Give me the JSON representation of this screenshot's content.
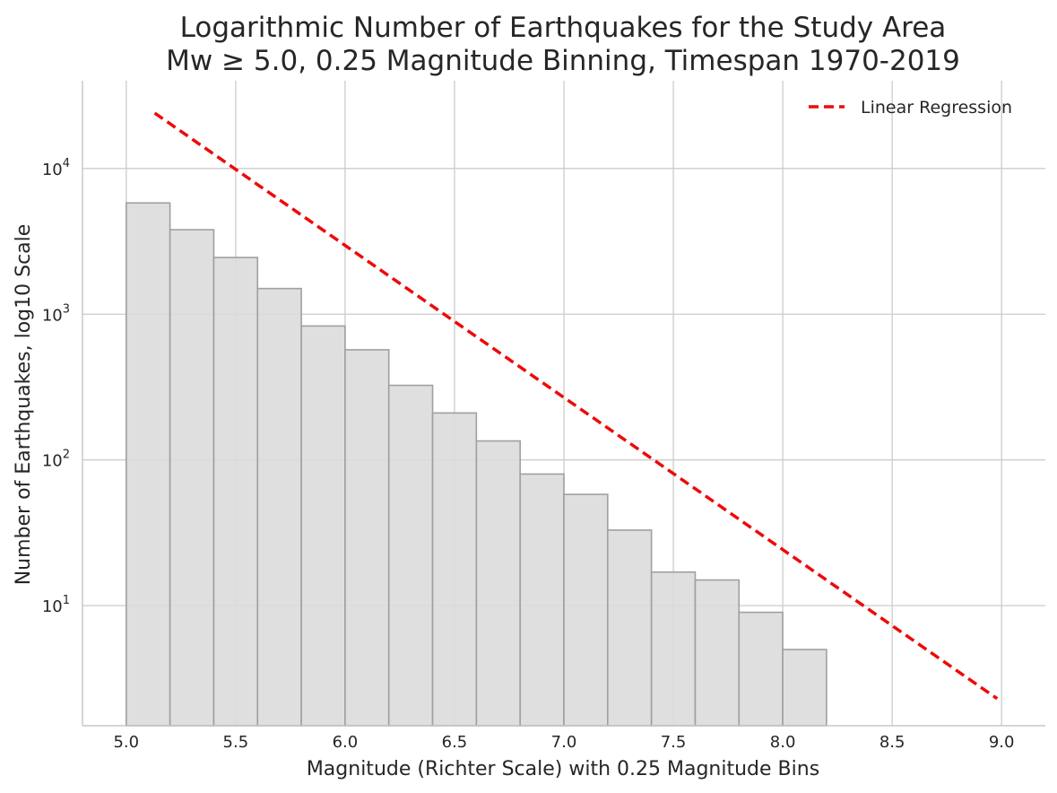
{
  "chart_data": {
    "type": "bar",
    "title_line1": "Logarithmic Number of Earthquakes for the Study Area",
    "title_line2": "Mw ≥ 5.0, 0.25 Magnitude Binning, Timespan 1970-2019",
    "xlabel": "Magnitude (Richter Scale) with 0.25 Magnitude Bins",
    "ylabel": "Number of Earthquakes, log10 Scale",
    "y_scale": "log10",
    "xlim": [
      4.8,
      9.2
    ],
    "ylim": [
      1.5,
      40000
    ],
    "grid": true,
    "legend_position": "top-right",
    "x_ticks": [
      {
        "value": 5.0,
        "label": "5.0"
      },
      {
        "value": 5.5,
        "label": "5.5"
      },
      {
        "value": 6.0,
        "label": "6.0"
      },
      {
        "value": 6.5,
        "label": "6.5"
      },
      {
        "value": 7.0,
        "label": "7.0"
      },
      {
        "value": 7.5,
        "label": "7.5"
      },
      {
        "value": 8.0,
        "label": "8.0"
      },
      {
        "value": 8.5,
        "label": "8.5"
      },
      {
        "value": 9.0,
        "label": "9.0"
      }
    ],
    "y_ticks": [
      {
        "value": 10,
        "base": "10",
        "exp": "1"
      },
      {
        "value": 100,
        "base": "10",
        "exp": "2"
      },
      {
        "value": 1000,
        "base": "10",
        "exp": "3"
      },
      {
        "value": 10000,
        "base": "10",
        "exp": "4"
      }
    ],
    "bins": [
      {
        "start": 5.0,
        "end": 5.2,
        "count": 5800
      },
      {
        "start": 5.2,
        "end": 5.4,
        "count": 3800
      },
      {
        "start": 5.4,
        "end": 5.6,
        "count": 2450
      },
      {
        "start": 5.6,
        "end": 5.8,
        "count": 1500
      },
      {
        "start": 5.8,
        "end": 6.0,
        "count": 830
      },
      {
        "start": 6.0,
        "end": 6.2,
        "count": 570
      },
      {
        "start": 6.2,
        "end": 6.4,
        "count": 325
      },
      {
        "start": 6.4,
        "end": 6.6,
        "count": 210
      },
      {
        "start": 6.6,
        "end": 6.8,
        "count": 135
      },
      {
        "start": 6.8,
        "end": 7.0,
        "count": 80
      },
      {
        "start": 7.0,
        "end": 7.2,
        "count": 58
      },
      {
        "start": 7.2,
        "end": 7.4,
        "count": 33
      },
      {
        "start": 7.4,
        "end": 7.6,
        "count": 17
      },
      {
        "start": 7.6,
        "end": 7.8,
        "count": 15
      },
      {
        "start": 7.8,
        "end": 8.0,
        "count": 9
      },
      {
        "start": 8.0,
        "end": 8.2,
        "count": 5
      }
    ],
    "series": [
      {
        "name": "Linear Regression",
        "style": "dashed",
        "x": [
          5.13,
          8.98
        ],
        "y": [
          24000,
          2.3
        ]
      }
    ],
    "colors": {
      "bar_fill": "#dcdcdc",
      "bar_edge": "#a0a0a0",
      "regression": "#ee0a0a",
      "grid": "#cccccc",
      "axis": "#c8c8c8",
      "text": "#262626"
    }
  }
}
